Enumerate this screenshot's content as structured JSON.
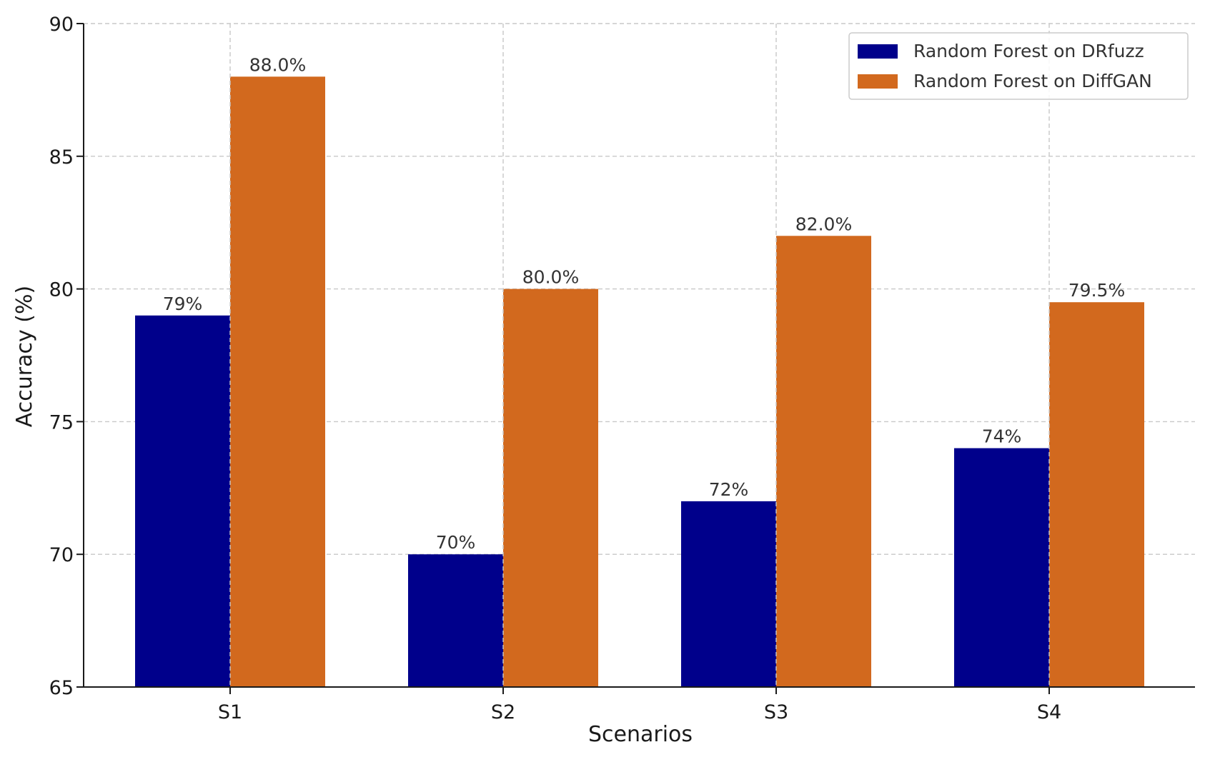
{
  "chart_data": {
    "type": "bar",
    "title": "",
    "xlabel": "Scenarios",
    "ylabel": "Accuracy (%)",
    "categories": [
      "S1",
      "S2",
      "S3",
      "S4"
    ],
    "ylim": [
      65,
      90
    ],
    "yticks": [
      65,
      70,
      75,
      80,
      85,
      90
    ],
    "grid": true,
    "legend_position": "top-right",
    "series": [
      {
        "name": "Random Forest on DRfuzz",
        "color": "#00008b",
        "values": [
          79,
          70,
          72,
          74
        ],
        "labels": [
          "79%",
          "70%",
          "72%",
          "74%"
        ]
      },
      {
        "name": "Random Forest on DiffGAN",
        "color": "#d2691e",
        "values": [
          88.0,
          80.0,
          82.0,
          79.5
        ],
        "labels": [
          "88.0%",
          "80.0%",
          "82.0%",
          "79.5%"
        ]
      }
    ]
  }
}
